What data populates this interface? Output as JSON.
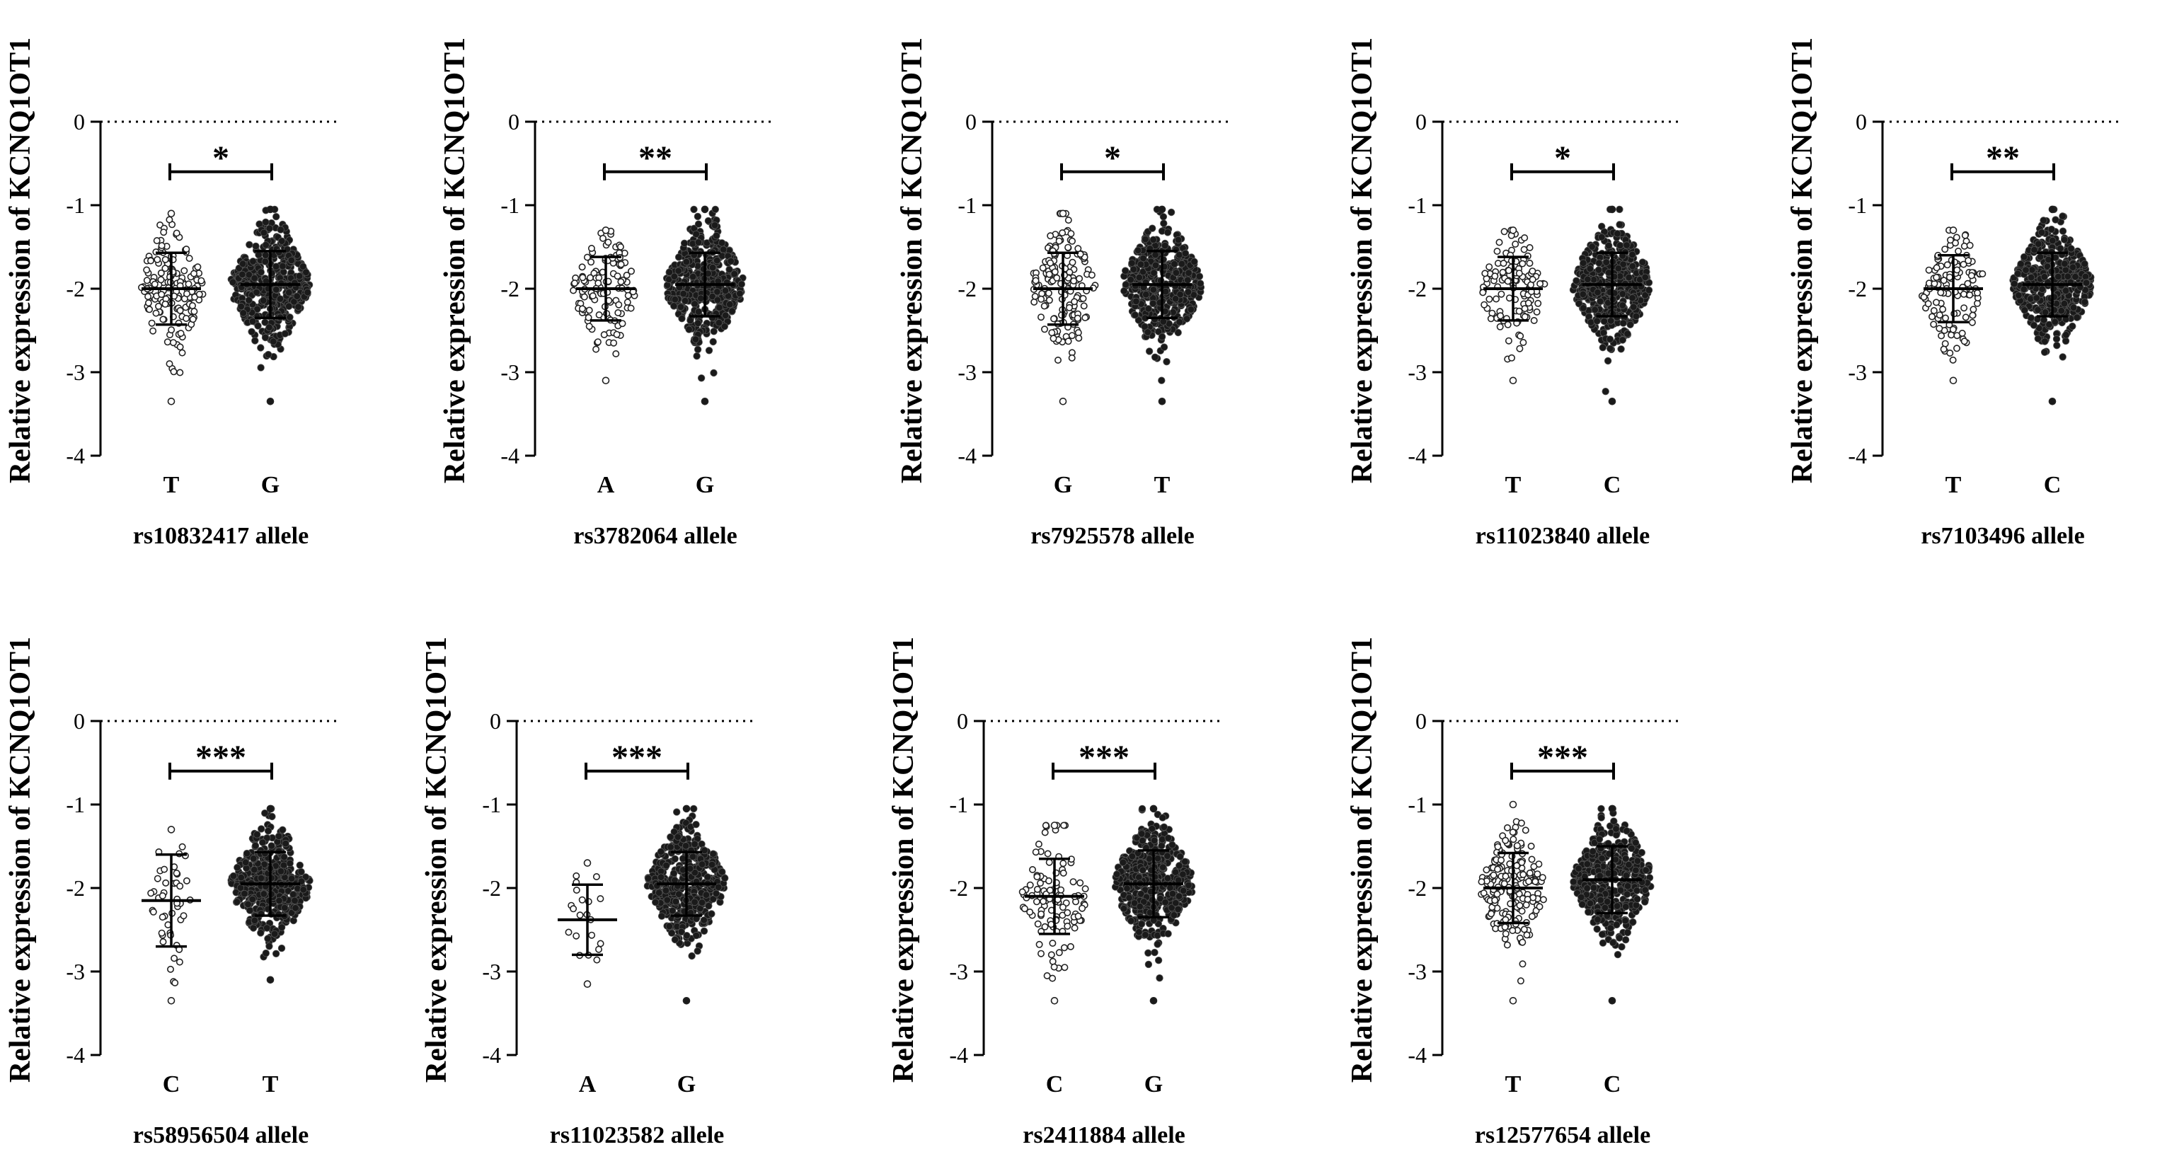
{
  "figure": {
    "background": "#ffffff",
    "ink": "#000000"
  },
  "chart_data": [
    {
      "type": "scatter",
      "subtype": "dot-plot-mean-sd",
      "title": "",
      "ylabel": "Relative expression of KCNQ1OT1",
      "xlabel": "rs10832417 allele",
      "categories": [
        "T",
        "G"
      ],
      "ylim": [
        -4,
        0
      ],
      "yticks": [
        0,
        -1,
        -2,
        -3,
        -4
      ],
      "reference_line": 0,
      "significance": "*",
      "groups": [
        {
          "name": "T",
          "n": 160,
          "mean": -2.0,
          "sd": 0.43,
          "min": -3.35,
          "max": -1.1,
          "marker": "open"
        },
        {
          "name": "G",
          "n": 420,
          "mean": -1.95,
          "sd": 0.4,
          "min": -3.35,
          "max": -1.05,
          "marker": "filled"
        }
      ]
    },
    {
      "type": "scatter",
      "subtype": "dot-plot-mean-sd",
      "title": "",
      "ylabel": "Relative expression of KCNQ1OT1",
      "xlabel": "rs3782064 allele",
      "categories": [
        "A",
        "G"
      ],
      "ylim": [
        -4,
        0
      ],
      "yticks": [
        0,
        -1,
        -2,
        -3,
        -4
      ],
      "reference_line": 0,
      "significance": "**",
      "groups": [
        {
          "name": "A",
          "n": 120,
          "mean": -2.0,
          "sd": 0.38,
          "min": -3.1,
          "max": -1.3,
          "marker": "open"
        },
        {
          "name": "G",
          "n": 440,
          "mean": -1.95,
          "sd": 0.38,
          "min": -3.35,
          "max": -1.05,
          "marker": "filled"
        }
      ]
    },
    {
      "type": "scatter",
      "subtype": "dot-plot-mean-sd",
      "title": "",
      "ylabel": "Relative expression of KCNQ1OT1",
      "xlabel": "rs7925578 allele",
      "categories": [
        "G",
        "T"
      ],
      "ylim": [
        -4,
        0
      ],
      "yticks": [
        0,
        -1,
        -2,
        -3,
        -4
      ],
      "reference_line": 0,
      "significance": "*",
      "groups": [
        {
          "name": "G",
          "n": 160,
          "mean": -2.0,
          "sd": 0.43,
          "min": -3.35,
          "max": -1.1,
          "marker": "open"
        },
        {
          "name": "T",
          "n": 420,
          "mean": -1.95,
          "sd": 0.4,
          "min": -3.35,
          "max": -1.05,
          "marker": "filled"
        }
      ]
    },
    {
      "type": "scatter",
      "subtype": "dot-plot-mean-sd",
      "title": "",
      "ylabel": "Relative expression of KCNQ1OT1",
      "xlabel": "rs11023840 allele",
      "categories": [
        "T",
        "C"
      ],
      "ylim": [
        -4,
        0
      ],
      "yticks": [
        0,
        -1,
        -2,
        -3,
        -4
      ],
      "reference_line": 0,
      "significance": "*",
      "groups": [
        {
          "name": "T",
          "n": 120,
          "mean": -2.0,
          "sd": 0.38,
          "min": -3.1,
          "max": -1.3,
          "marker": "open"
        },
        {
          "name": "C",
          "n": 440,
          "mean": -1.95,
          "sd": 0.38,
          "min": -3.35,
          "max": -1.05,
          "marker": "filled"
        }
      ]
    },
    {
      "type": "scatter",
      "subtype": "dot-plot-mean-sd",
      "title": "",
      "ylabel": "Relative expression of KCNQ1OT1",
      "xlabel": "rs7103496 allele",
      "categories": [
        "T",
        "C"
      ],
      "ylim": [
        -4,
        0
      ],
      "yticks": [
        0,
        -1,
        -2,
        -3,
        -4
      ],
      "reference_line": 0,
      "significance": "**",
      "groups": [
        {
          "name": "T",
          "n": 120,
          "mean": -2.0,
          "sd": 0.4,
          "min": -3.1,
          "max": -1.3,
          "marker": "open"
        },
        {
          "name": "C",
          "n": 440,
          "mean": -1.95,
          "sd": 0.38,
          "min": -3.35,
          "max": -1.05,
          "marker": "filled"
        }
      ]
    },
    {
      "type": "scatter",
      "subtype": "dot-plot-mean-sd",
      "title": "",
      "ylabel": "Relative expression of KCNQ1OT1",
      "xlabel": "rs58956504 allele",
      "categories": [
        "C",
        "T"
      ],
      "ylim": [
        -4,
        0
      ],
      "yticks": [
        0,
        -1,
        -2,
        -3,
        -4
      ],
      "reference_line": 0,
      "significance": "***",
      "groups": [
        {
          "name": "C",
          "n": 45,
          "mean": -2.15,
          "sd": 0.55,
          "min": -3.35,
          "max": -1.3,
          "marker": "open"
        },
        {
          "name": "T",
          "n": 440,
          "mean": -1.95,
          "sd": 0.38,
          "min": -3.1,
          "max": -1.05,
          "marker": "filled"
        }
      ]
    },
    {
      "type": "scatter",
      "subtype": "dot-plot-mean-sd",
      "title": "",
      "ylabel": "Relative expression of KCNQ1OT1",
      "xlabel": "rs11023582 allele",
      "categories": [
        "A",
        "G"
      ],
      "ylim": [
        -4,
        0
      ],
      "yticks": [
        0,
        -1,
        -2,
        -3,
        -4
      ],
      "reference_line": 0,
      "significance": "***",
      "groups": [
        {
          "name": "A",
          "n": 20,
          "mean": -2.38,
          "sd": 0.42,
          "min": -3.15,
          "max": -1.7,
          "marker": "open"
        },
        {
          "name": "G",
          "n": 460,
          "mean": -1.95,
          "sd": 0.38,
          "min": -3.35,
          "max": -1.05,
          "marker": "filled"
        }
      ]
    },
    {
      "type": "scatter",
      "subtype": "dot-plot-mean-sd",
      "title": "",
      "ylabel": "Relative expression of KCNQ1OT1",
      "xlabel": "rs2411884 allele",
      "categories": [
        "C",
        "G"
      ],
      "ylim": [
        -4,
        0
      ],
      "yticks": [
        0,
        -1,
        -2,
        -3,
        -4
      ],
      "reference_line": 0,
      "significance": "***",
      "groups": [
        {
          "name": "C",
          "n": 110,
          "mean": -2.1,
          "sd": 0.45,
          "min": -3.35,
          "max": -1.25,
          "marker": "open"
        },
        {
          "name": "G",
          "n": 420,
          "mean": -1.95,
          "sd": 0.4,
          "min": -3.35,
          "max": -1.05,
          "marker": "filled"
        }
      ]
    },
    {
      "type": "scatter",
      "subtype": "dot-plot-mean-sd",
      "title": "",
      "ylabel": "Relative expression of KCNQ1OT1",
      "xlabel": "rs12577654 allele",
      "categories": [
        "T",
        "C"
      ],
      "ylim": [
        -4,
        0
      ],
      "yticks": [
        0,
        -1,
        -2,
        -3,
        -4
      ],
      "reference_line": 0,
      "significance": "***",
      "groups": [
        {
          "name": "T",
          "n": 180,
          "mean": -2.0,
          "sd": 0.42,
          "min": -3.35,
          "max": -1.0,
          "marker": "open"
        },
        {
          "name": "C",
          "n": 400,
          "mean": -1.9,
          "sd": 0.4,
          "min": -3.35,
          "max": -1.05,
          "marker": "filled"
        }
      ]
    }
  ]
}
